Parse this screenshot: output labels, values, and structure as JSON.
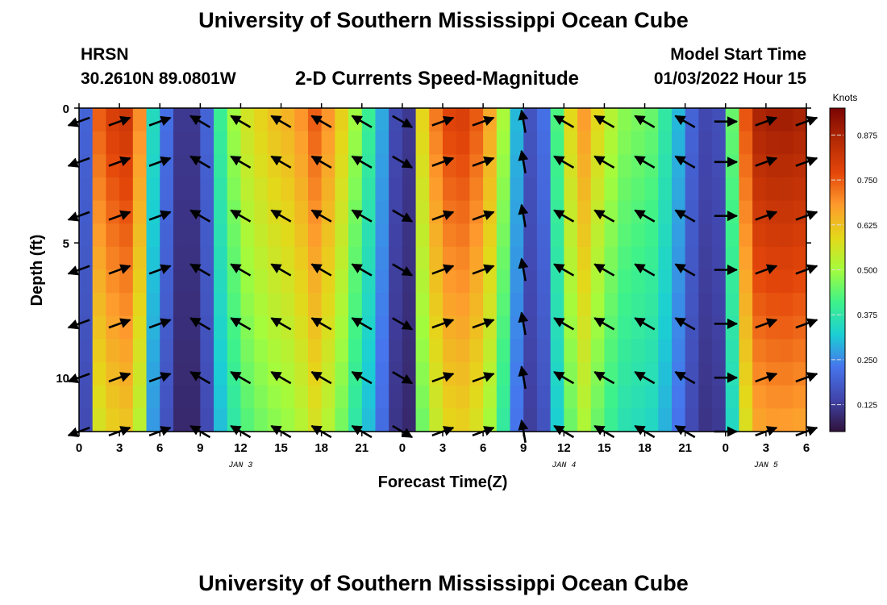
{
  "header": {
    "title": "University of Southern Mississippi Ocean Cube",
    "station": "HRSN",
    "coordinates": "30.2610N  89.0801W",
    "subtitle": "2-D Currents Speed-Magnitude",
    "start_label": "Model Start Time",
    "start_value": "01/03/2022 Hour 15"
  },
  "footer": {
    "title": "University of Southern Mississippi Ocean Cube"
  },
  "chart_data": {
    "type": "heatmap",
    "title": "2-D Currents Speed-Magnitude",
    "xlabel": "Forecast Time(Z)",
    "ylabel": "Depth (ft)",
    "x_hours": [
      0,
      1.5,
      3,
      4.5,
      6,
      7.5,
      9,
      10.5,
      12,
      13.5,
      15,
      16.5,
      18,
      19.5,
      21,
      22.5,
      24,
      25.5,
      27,
      28.5,
      30,
      31.5,
      33,
      34.5,
      36,
      37.5,
      39,
      40.5,
      42,
      43.5,
      45,
      46.5,
      48,
      49.5,
      51,
      52.5,
      54
    ],
    "xlim": [
      0,
      54
    ],
    "ylim": [
      0,
      12
    ],
    "y_inverted": true,
    "x_ticks": [
      0,
      3,
      6,
      9,
      12,
      15,
      18,
      21,
      24,
      27,
      30,
      33,
      36,
      39,
      42,
      45,
      48,
      51,
      54
    ],
    "x_tick_labels": [
      "0",
      "3",
      "6",
      "9",
      "12",
      "15",
      "18",
      "21",
      "0",
      "3",
      "6",
      "9",
      "12",
      "15",
      "18",
      "21",
      "0",
      "3",
      "6"
    ],
    "y_ticks": [
      0,
      5,
      10
    ],
    "y_tick_labels": [
      "0",
      "5",
      "10"
    ],
    "day_labels": [
      {
        "hour": 12,
        "label": "JAN 3"
      },
      {
        "hour": 36,
        "label": "JAN 4"
      },
      {
        "hour": 51,
        "label": "JAN 5"
      }
    ],
    "colorbar": {
      "unit": "Knots",
      "min": 0.05,
      "max": 0.95,
      "ticks": [
        0.125,
        0.25,
        0.375,
        0.5,
        0.625,
        0.75,
        0.875
      ],
      "tick_labels": [
        "0.125",
        "0.250",
        "0.375",
        "0.500",
        "0.625",
        "0.750",
        "0.875"
      ]
    },
    "speed_profile_knots": [
      [
        0,
        0.25
      ],
      [
        0.5,
        0.2
      ],
      [
        1,
        0.45
      ],
      [
        1.5,
        0.75
      ],
      [
        2.5,
        0.8
      ],
      [
        3.5,
        0.82
      ],
      [
        4.5,
        0.7
      ],
      [
        5.5,
        0.35
      ],
      [
        6.5,
        0.22
      ],
      [
        7.5,
        0.12
      ],
      [
        8.5,
        0.12
      ],
      [
        9.5,
        0.2
      ],
      [
        10.5,
        0.4
      ],
      [
        12,
        0.55
      ],
      [
        14,
        0.62
      ],
      [
        16,
        0.66
      ],
      [
        17.5,
        0.75
      ],
      [
        19,
        0.66
      ],
      [
        20.5,
        0.5
      ],
      [
        22,
        0.35
      ],
      [
        23.5,
        0.15
      ],
      [
        24.5,
        0.12
      ],
      [
        25.5,
        0.6
      ],
      [
        27,
        0.78
      ],
      [
        29,
        0.8
      ],
      [
        31,
        0.62
      ],
      [
        32,
        0.4
      ],
      [
        33,
        0.2
      ],
      [
        34,
        0.14
      ],
      [
        35,
        0.3
      ],
      [
        36,
        0.55
      ],
      [
        37.5,
        0.68
      ],
      [
        39,
        0.55
      ],
      [
        40.5,
        0.48
      ],
      [
        42.5,
        0.45
      ],
      [
        44,
        0.35
      ],
      [
        45.5,
        0.2
      ],
      [
        47,
        0.12
      ],
      [
        48,
        0.2
      ],
      [
        49,
        0.7
      ],
      [
        50.5,
        0.88
      ],
      [
        52,
        0.9
      ],
      [
        54,
        0.88
      ]
    ],
    "depth_decay": 0.25,
    "arrow_depths_ft": [
      0.5,
      2,
      4,
      6,
      8,
      10,
      12
    ],
    "arrow_hours": [
      0,
      3,
      6,
      9,
      12,
      15,
      18,
      21,
      24,
      27,
      30,
      33,
      36,
      39,
      42,
      45,
      48,
      51,
      54
    ],
    "arrow_direction_deg": [
      200,
      20,
      20,
      150,
      150,
      150,
      150,
      150,
      330,
      20,
      20,
      100,
      150,
      150,
      150,
      150,
      0,
      20,
      20
    ]
  }
}
